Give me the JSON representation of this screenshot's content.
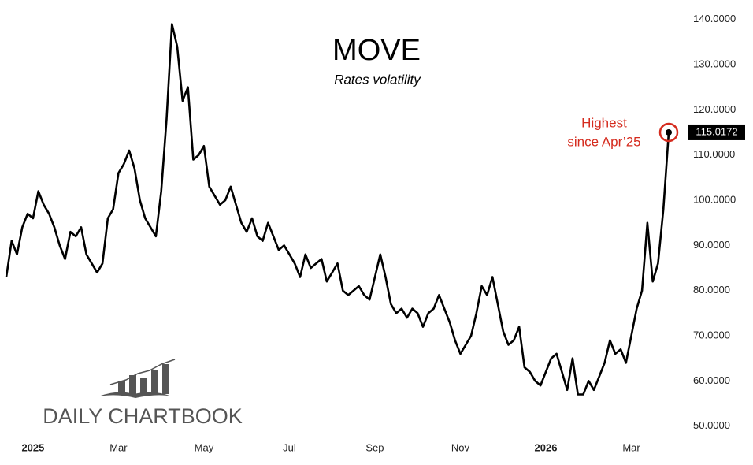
{
  "chart_data": {
    "type": "line",
    "title": "MOVE",
    "subtitle": "Rates volatility",
    "annotation": [
      "Highest",
      "since Apr’25"
    ],
    "annotation_color": "#d52b1e",
    "watermark": "DAILY CHARTBOOK",
    "grid": false,
    "ylim": [
      47.5,
      141.7
    ],
    "yticks": [
      {
        "value": 50,
        "label": "50.0000"
      },
      {
        "value": 60,
        "label": "60.0000"
      },
      {
        "value": 70,
        "label": "70.0000"
      },
      {
        "value": 80,
        "label": "80.0000"
      },
      {
        "value": 90,
        "label": "90.0000"
      },
      {
        "value": 100,
        "label": "100.0000"
      },
      {
        "value": 110,
        "label": "110.0000"
      },
      {
        "value": 120,
        "label": "120.0000"
      },
      {
        "value": 130,
        "label": "130.0000"
      },
      {
        "value": 140,
        "label": "140.0000"
      }
    ],
    "categories": [
      null,
      null,
      null,
      null,
      null,
      "2025",
      null,
      null,
      null,
      null,
      null,
      null,
      null,
      null,
      null,
      null,
      null,
      null,
      null,
      null,
      null,
      "Mar",
      null,
      null,
      null,
      null,
      null,
      null,
      null,
      null,
      null,
      null,
      null,
      null,
      null,
      null,
      null,
      "May",
      null,
      null,
      null,
      null,
      null,
      null,
      null,
      null,
      null,
      null,
      null,
      null,
      null,
      null,
      null,
      "Jul",
      null,
      null,
      null,
      null,
      null,
      null,
      null,
      null,
      null,
      null,
      null,
      null,
      null,
      null,
      null,
      "Sep",
      null,
      null,
      null,
      null,
      null,
      null,
      null,
      null,
      null,
      null,
      null,
      null,
      null,
      null,
      null,
      "Nov",
      null,
      null,
      null,
      null,
      null,
      null,
      null,
      null,
      null,
      null,
      null,
      null,
      null,
      null,
      null,
      "2026",
      null,
      null,
      null,
      null,
      null,
      null,
      null,
      null,
      null,
      null,
      null,
      null,
      null,
      null,
      null,
      "Mar",
      null,
      null,
      null,
      null,
      null,
      null,
      null
    ],
    "series": [
      {
        "name": "MOVE",
        "color": "#000000",
        "values": [
          83,
          91,
          88,
          94,
          97,
          96,
          102,
          99,
          97,
          94,
          90,
          87,
          93,
          92,
          94,
          88,
          86,
          84,
          86,
          96,
          98,
          106,
          108,
          111,
          107,
          100,
          96,
          94,
          92,
          102,
          118,
          139,
          134,
          122,
          125,
          109,
          110,
          112,
          103,
          101,
          99,
          100,
          103,
          99,
          95,
          93,
          96,
          92,
          91,
          95,
          92,
          89,
          90,
          88,
          86,
          83,
          88,
          85,
          86,
          87,
          82,
          84,
          86,
          80,
          79,
          80,
          81,
          79,
          78,
          83,
          88,
          83,
          77,
          75,
          76,
          74,
          76,
          75,
          72,
          75,
          76,
          79,
          76,
          73,
          69,
          66,
          68,
          70,
          75,
          81,
          79,
          83,
          77,
          71,
          68,
          69,
          72,
          63,
          62,
          60,
          59,
          62,
          65,
          66,
          62,
          58,
          65,
          57,
          57,
          60,
          58,
          61,
          64,
          69,
          66,
          67,
          64,
          70,
          76,
          80,
          95,
          82,
          86,
          98,
          115.0172
        ]
      }
    ]
  }
}
